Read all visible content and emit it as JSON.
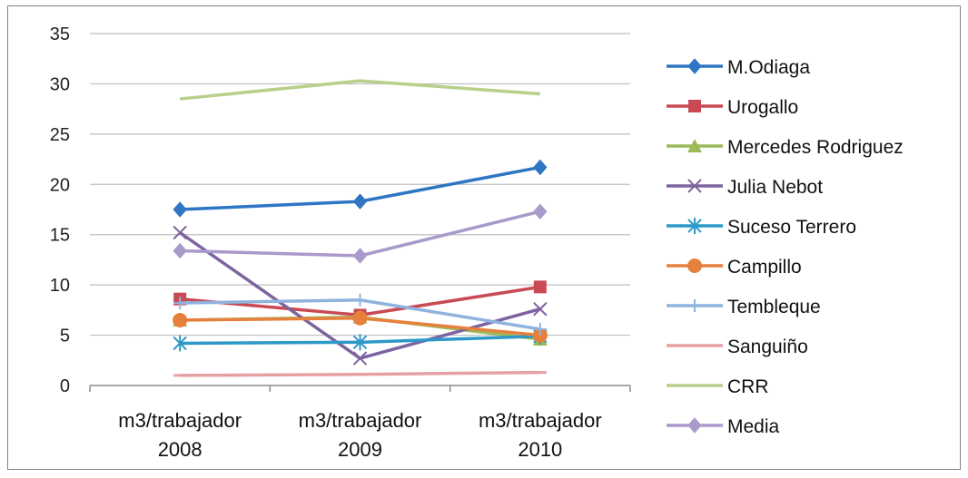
{
  "chart_data": {
    "type": "line",
    "title": "",
    "xlabel": "",
    "ylabel": "",
    "categories": [
      [
        "m3/trabajador",
        "2008"
      ],
      [
        "m3/trabajador",
        "2009"
      ],
      [
        "m3/trabajador",
        "2010"
      ]
    ],
    "ylim": [
      0,
      35
    ],
    "yticks": [
      0,
      5,
      10,
      15,
      20,
      25,
      30,
      35
    ],
    "grid": true,
    "legend_position": "right",
    "series": [
      {
        "name": "M.Odiaga",
        "values": [
          17.5,
          18.3,
          21.7
        ],
        "color": "#2e75c3",
        "marker": "diamond"
      },
      {
        "name": "Urogallo",
        "values": [
          8.6,
          7.0,
          9.8
        ],
        "color": "#c94a54",
        "marker": "square"
      },
      {
        "name": "Mercedes Rodriguez",
        "values": [
          6.5,
          6.8,
          4.6
        ],
        "color": "#9bbb59",
        "marker": "triangle"
      },
      {
        "name": "Julia Nebot",
        "values": [
          15.2,
          2.7,
          7.6
        ],
        "color": "#7e63a1",
        "marker": "x"
      },
      {
        "name": "Suceso Terrero",
        "values": [
          4.2,
          4.3,
          4.9
        ],
        "color": "#2e98c7",
        "marker": "star"
      },
      {
        "name": "Campillo",
        "values": [
          6.5,
          6.7,
          5.0
        ],
        "color": "#e6803c",
        "marker": "circle"
      },
      {
        "name": "Tembleque",
        "values": [
          8.2,
          8.5,
          5.6
        ],
        "color": "#8fb3dc",
        "marker": "plus"
      },
      {
        "name": "Sanguiño",
        "values": [
          1.0,
          1.1,
          1.3
        ],
        "color": "#e6a0a4",
        "marker": "dash"
      },
      {
        "name": "CRR",
        "values": [
          28.5,
          30.3,
          29.0
        ],
        "color": "#b7d08c",
        "marker": "none"
      },
      {
        "name": "Media",
        "values": [
          13.4,
          12.9,
          17.3
        ],
        "color": "#a99acb",
        "marker": "diamond"
      }
    ]
  }
}
